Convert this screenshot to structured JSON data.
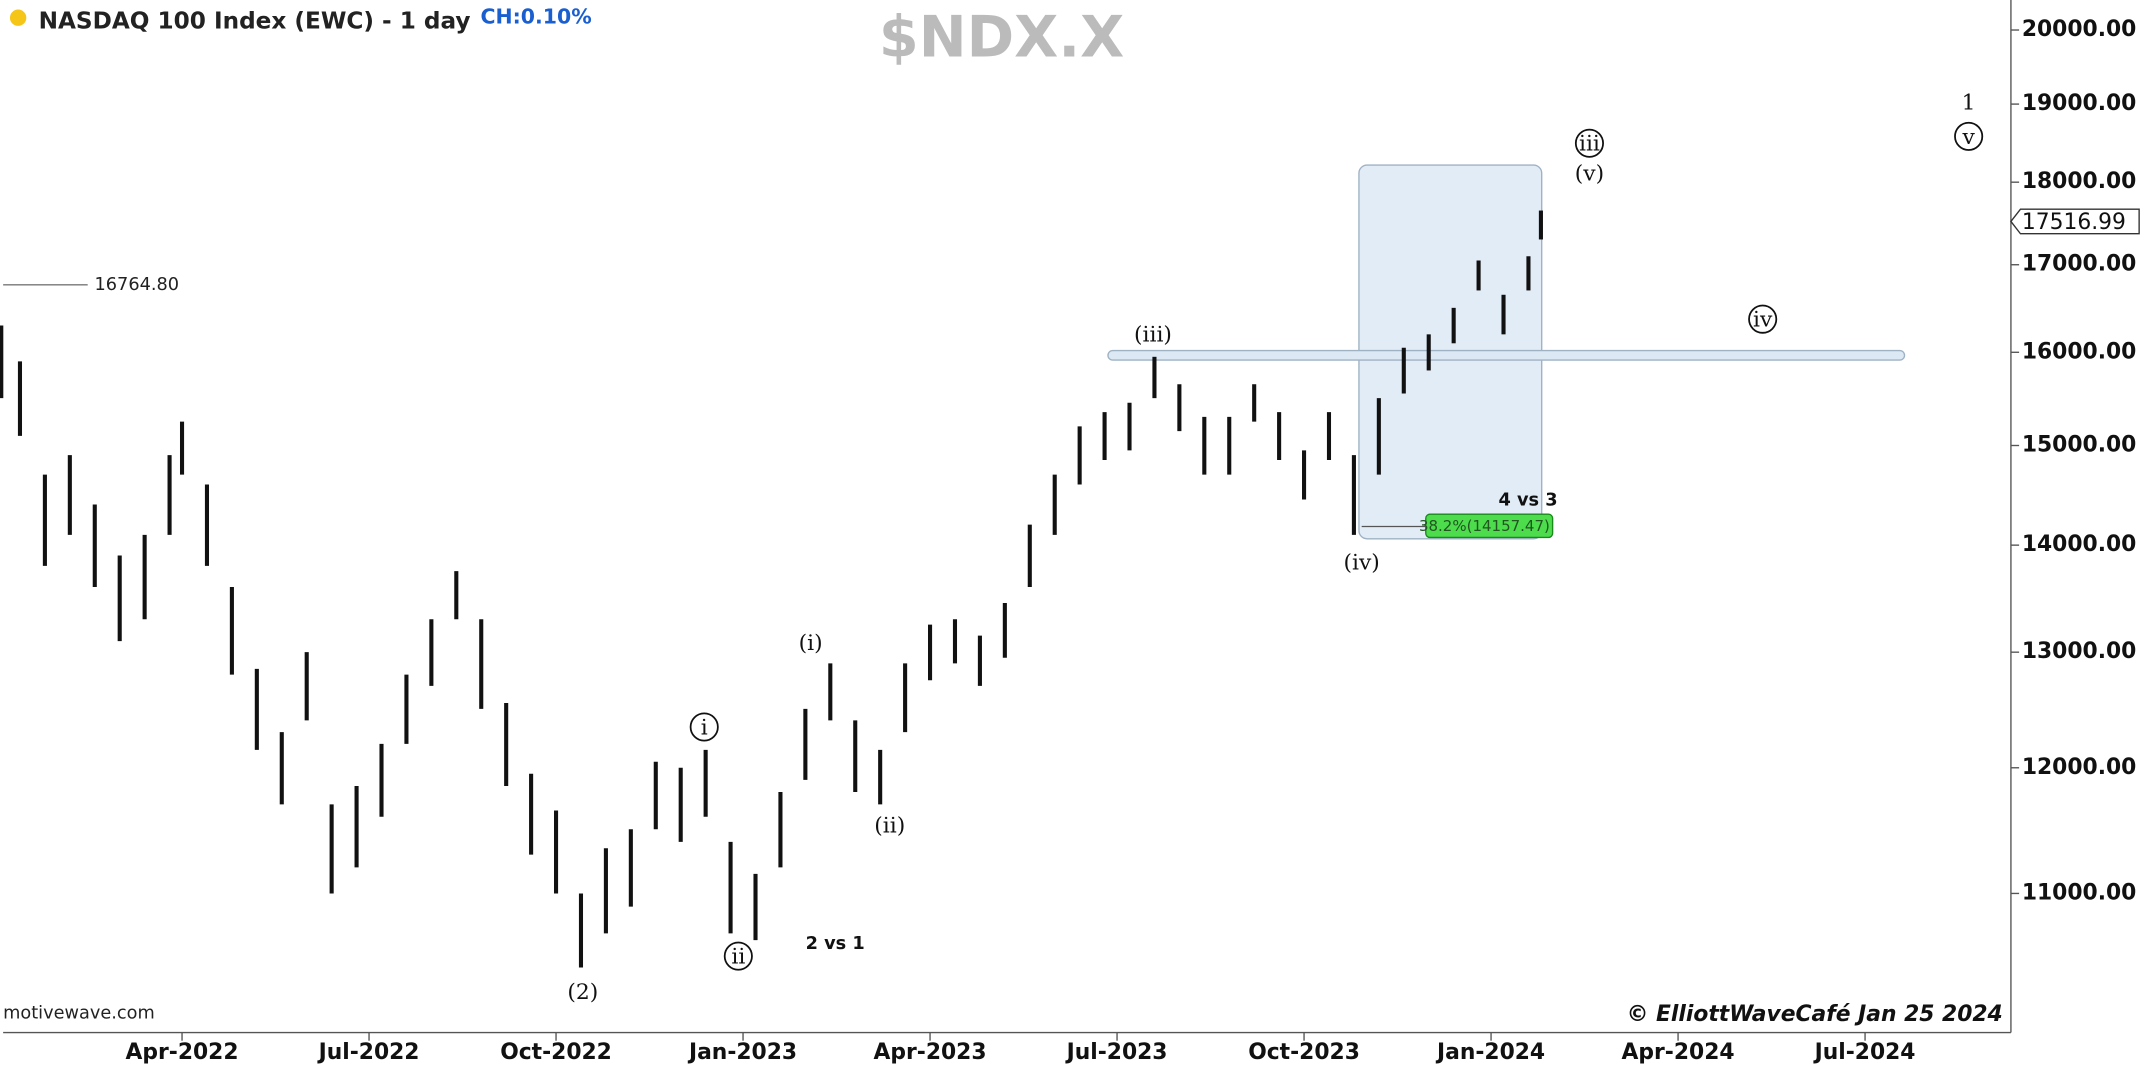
{
  "chart_data": {
    "type": "ohlc",
    "title": "NASDAQ 100 Index (EWC) - 1 day",
    "change": "CH:0.10%",
    "symbol": "$NDX.X",
    "log_scale": true,
    "color": "#111111",
    "xlim": [
      0.13,
      32.34
    ],
    "ylim": [
      9990,
      20420
    ],
    "xticks": [
      {
        "value": 3,
        "label": "Apr-2022"
      },
      {
        "value": 6,
        "label": "Jul-2022"
      },
      {
        "value": 9,
        "label": "Oct-2022"
      },
      {
        "value": 12,
        "label": "Jan-2023"
      },
      {
        "value": 15,
        "label": "Apr-2023"
      },
      {
        "value": 18,
        "label": "Jul-2023"
      },
      {
        "value": 21,
        "label": "Oct-2023"
      },
      {
        "value": 24,
        "label": "Jan-2024"
      },
      {
        "value": 27,
        "label": "Apr-2024"
      },
      {
        "value": 30,
        "label": "Jul-2024"
      }
    ],
    "yticks": [
      {
        "value": 11000,
        "label": "11000.00"
      },
      {
        "value": 12000,
        "label": "12000.00"
      },
      {
        "value": 13000,
        "label": "13000.00"
      },
      {
        "value": 14000,
        "label": "14000.00"
      },
      {
        "value": 15000,
        "label": "15000.00"
      },
      {
        "value": 16000,
        "label": "16000.00"
      },
      {
        "value": 17000,
        "label": "17000.00"
      },
      {
        "value": 18000,
        "label": "18000.00"
      },
      {
        "value": 19000,
        "label": "19000.00"
      },
      {
        "value": 20000,
        "label": "20000.00"
      }
    ],
    "x": [
      0.1,
      0.4,
      0.8,
      1.2,
      1.6,
      2.0,
      2.4,
      2.8,
      3.0,
      3.4,
      3.8,
      4.2,
      4.6,
      5.0,
      5.4,
      5.8,
      6.2,
      6.6,
      7.0,
      7.4,
      7.8,
      8.2,
      8.6,
      9.0,
      9.4,
      9.8,
      10.2,
      10.6,
      11.0,
      11.4,
      11.8,
      12.2,
      12.6,
      13.0,
      13.4,
      13.8,
      14.2,
      14.6,
      15.0,
      15.4,
      15.8,
      16.2,
      16.6,
      17.0,
      17.4,
      17.8,
      18.2,
      18.6,
      19.0,
      19.4,
      19.8,
      20.2,
      20.6,
      21.0,
      21.4,
      21.8,
      22.2,
      22.6,
      23.0,
      23.4,
      23.8,
      24.2,
      24.6,
      24.8
    ],
    "high": [
      16300,
      15900,
      14700,
      14900,
      14400,
      13900,
      14100,
      14900,
      15250,
      14600,
      13600,
      12850,
      12300,
      13000,
      11700,
      11850,
      12200,
      12800,
      13300,
      13750,
      13300,
      12550,
      11950,
      11650,
      11000,
      11350,
      11500,
      12050,
      12000,
      12150,
      11400,
      11150,
      11800,
      12500,
      12900,
      12400,
      12150,
      12900,
      13250,
      13300,
      13150,
      13450,
      14200,
      14700,
      15200,
      15350,
      15450,
      15950,
      15650,
      15300,
      15300,
      15650,
      15350,
      14950,
      15350,
      14900,
      15500,
      16050,
      16200,
      16500,
      17050,
      16650,
      17100,
      17650
    ],
    "low": [
      15500,
      15100,
      13800,
      14100,
      13600,
      13100,
      13300,
      14100,
      14700,
      13800,
      12800,
      12150,
      11700,
      12400,
      11000,
      11200,
      11600,
      12200,
      12700,
      13300,
      12500,
      11850,
      11300,
      11000,
      10450,
      10700,
      10900,
      11500,
      11400,
      11600,
      10700,
      10650,
      11200,
      11900,
      12400,
      11800,
      11700,
      12300,
      12750,
      12900,
      12700,
      12950,
      13600,
      14100,
      14600,
      14850,
      14950,
      15500,
      15150,
      14700,
      14700,
      15250,
      14850,
      14450,
      14850,
      14100,
      14700,
      15550,
      15800,
      16100,
      16700,
      16200,
      16700,
      17300
    ],
    "last_price": 17516.99,
    "level": {
      "value": 16764.8,
      "label": "16764.80"
    },
    "annotations": [
      {
        "text": "1",
        "circled": false
      },
      {
        "text": "v",
        "circled": true
      },
      {
        "text": "iii",
        "circled": true
      },
      {
        "text": "(v)",
        "circled": false
      },
      {
        "text": "(iii)",
        "circled": false
      },
      {
        "text": "iv",
        "circled": true
      },
      {
        "text": "(iv)",
        "circled": false
      },
      {
        "text": "(i)",
        "circled": false
      },
      {
        "text": "i",
        "circled": true
      },
      {
        "text": "(ii)",
        "circled": false
      },
      {
        "text": "ii",
        "circled": true
      },
      {
        "text": "(2)",
        "circled": false
      },
      {
        "text": "2 vs 1",
        "circled": false
      },
      {
        "text": "4 vs 3",
        "circled": false
      }
    ],
    "fib_label": "38.2%(14157.47)",
    "source": "motivewave.com",
    "copyright": "© ElliottWaveCafé Jan 25 2024"
  }
}
